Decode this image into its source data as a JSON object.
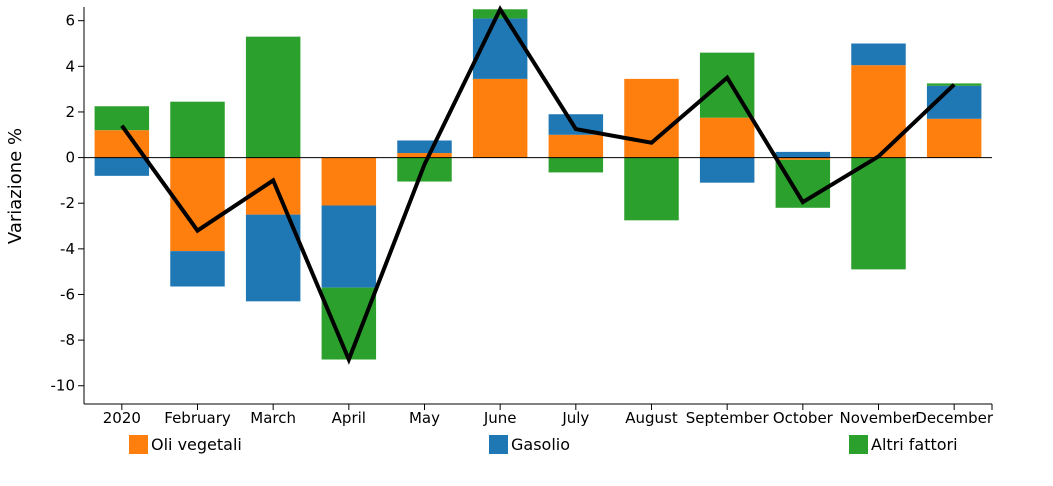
{
  "chart_data": {
    "type": "bar",
    "stacked": true,
    "ylabel": "Variazione %",
    "xlabel": "",
    "ylim": [
      -10.8,
      6.6
    ],
    "yticks": [
      6,
      4,
      2,
      0,
      -2,
      -4,
      -6,
      -8,
      -10
    ],
    "categories": [
      "2020",
      "February",
      "March",
      "April",
      "May",
      "June",
      "July",
      "August",
      "September",
      "October",
      "November",
      "December"
    ],
    "series": [
      {
        "name": "Oli vegetali",
        "color": "#ff7f0e",
        "values": [
          1.2,
          -4.1,
          -2.5,
          -2.1,
          0.2,
          3.45,
          1.0,
          3.45,
          1.75,
          -0.1,
          4.05,
          1.7
        ]
      },
      {
        "name": "Gasolio",
        "color": "#1f77b4",
        "values": [
          -0.8,
          -1.55,
          -3.8,
          -3.6,
          0.55,
          2.65,
          0.9,
          0.0,
          -1.1,
          0.25,
          0.95,
          1.45
        ]
      },
      {
        "name": "Altri fattori",
        "color": "#2ca02c",
        "values": [
          1.05,
          2.45,
          5.3,
          -3.15,
          -1.05,
          0.4,
          -0.65,
          -2.75,
          2.85,
          -2.1,
          -4.9,
          0.1
        ]
      }
    ],
    "total_line": {
      "color": "#000000",
      "values": [
        1.4,
        -3.2,
        -1.0,
        -8.85,
        -0.3,
        6.5,
        1.25,
        0.65,
        3.5,
        -1.95,
        0.05,
        3.2
      ]
    },
    "legend_position": "bottom",
    "grid": false
  }
}
